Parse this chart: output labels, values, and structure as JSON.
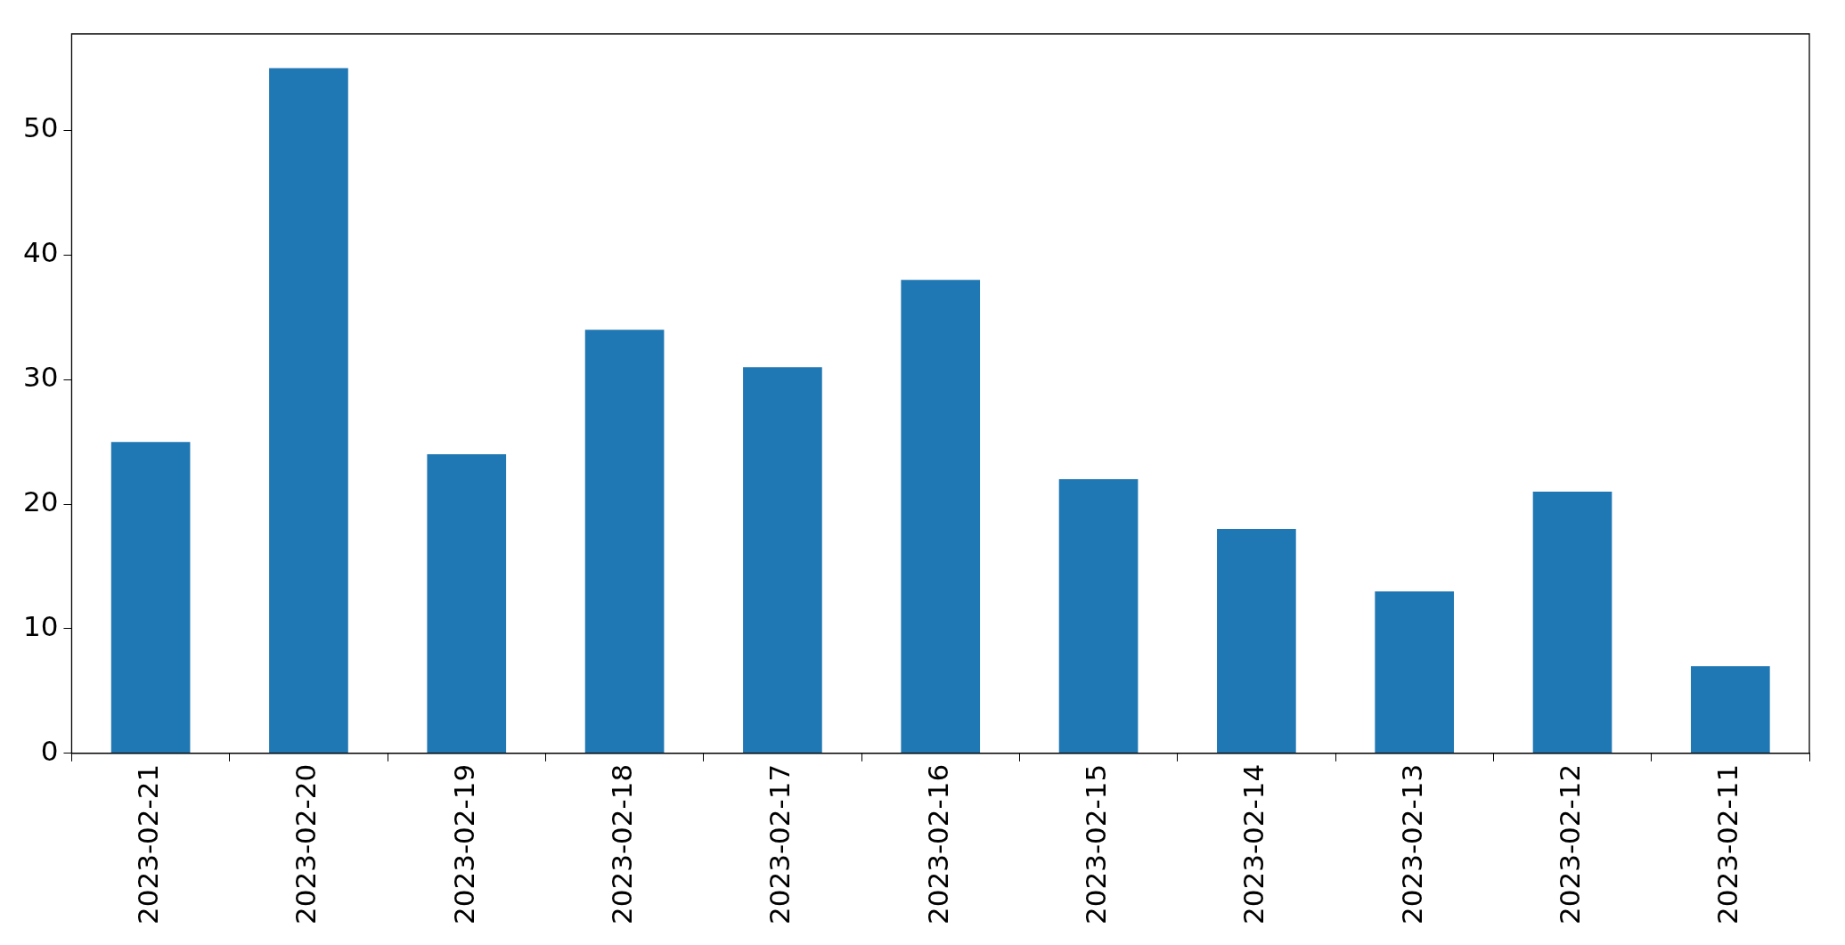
{
  "chart_data": {
    "type": "bar",
    "categories": [
      "2023-02-21",
      "2023-02-20",
      "2023-02-19",
      "2023-02-18",
      "2023-02-17",
      "2023-02-16",
      "2023-02-15",
      "2023-02-14",
      "2023-02-13",
      "2023-02-12",
      "2023-02-11"
    ],
    "values": [
      25,
      55,
      24,
      34,
      31,
      38,
      22,
      18,
      13,
      21,
      7
    ],
    "color": "#1f77b4",
    "ylim": [
      0,
      57.75
    ],
    "yticks": [
      0,
      10,
      20,
      30,
      40,
      50
    ],
    "legend": false
  }
}
